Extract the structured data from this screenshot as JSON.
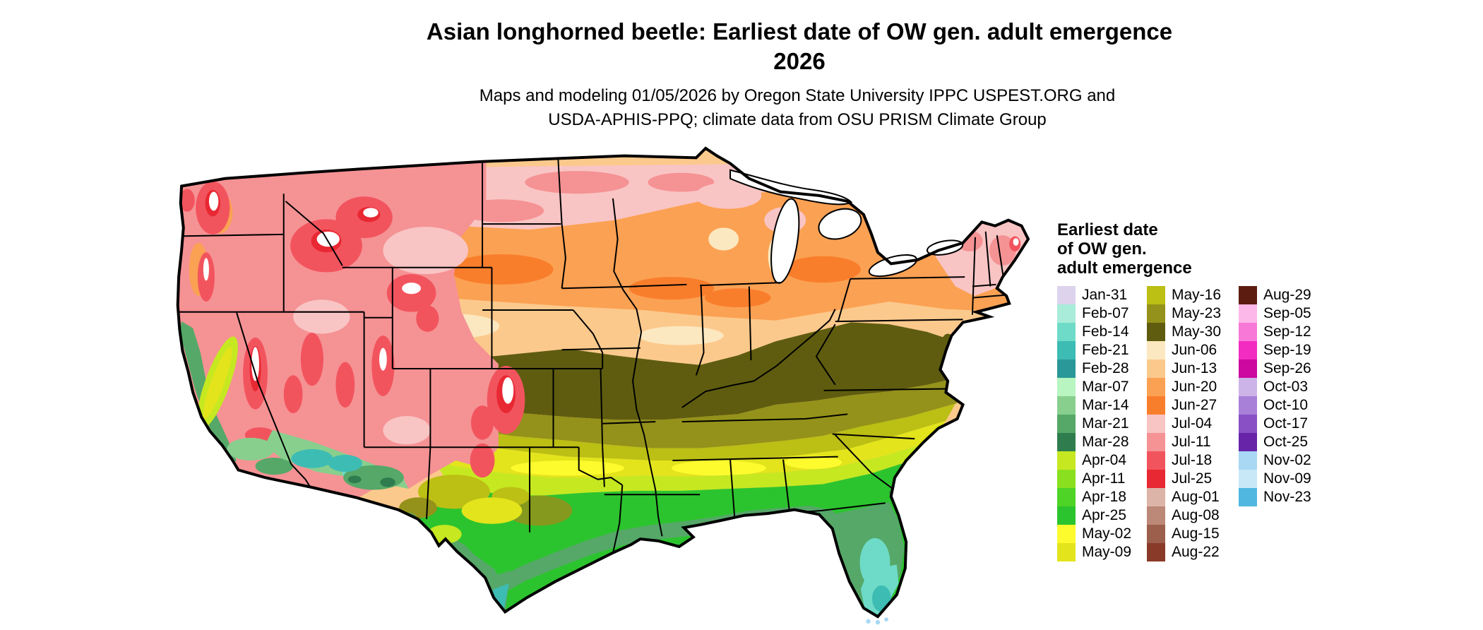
{
  "title": {
    "line1": "Asian longhorned beetle: Earliest date of OW gen. adult emergence",
    "line2": "2026"
  },
  "subtitle": {
    "line1": "Maps and modeling 01/05/2026 by Oregon State University IPPC USPEST.ORG and",
    "line2": "USDA-APHIS-PPQ; climate data from OSU PRISM Climate Group"
  },
  "legend": {
    "title_lines": [
      "Earliest date",
      "of OW gen.",
      "adult emergence"
    ],
    "columns": [
      {
        "entries": [
          {
            "label": "Jan-31",
            "color": "#ddd3ec"
          },
          {
            "label": "Feb-07",
            "color": "#a8ecd9"
          },
          {
            "label": "Feb-14",
            "color": "#6edbc8"
          },
          {
            "label": "Feb-21",
            "color": "#3dbcb4"
          },
          {
            "label": "Feb-28",
            "color": "#2a9898"
          },
          {
            "label": "Mar-07",
            "color": "#b8f5c0"
          },
          {
            "label": "Mar-14",
            "color": "#88cf8e"
          },
          {
            "label": "Mar-21",
            "color": "#55a868"
          },
          {
            "label": "Mar-28",
            "color": "#2f7d4e"
          },
          {
            "label": "Apr-04",
            "color": "#c6e821"
          },
          {
            "label": "Apr-11",
            "color": "#8ae01e"
          },
          {
            "label": "Apr-18",
            "color": "#4ed427"
          },
          {
            "label": "Apr-25",
            "color": "#2cc42e"
          },
          {
            "label": "May-02",
            "color": "#fdfb2e"
          },
          {
            "label": "May-09",
            "color": "#e3e41c"
          }
        ]
      },
      {
        "entries": [
          {
            "label": "May-16",
            "color": "#bcbf14"
          },
          {
            "label": "May-23",
            "color": "#94921a"
          },
          {
            "label": "May-30",
            "color": "#5f5c10"
          },
          {
            "label": "Jun-06",
            "color": "#fce8c0"
          },
          {
            "label": "Jun-13",
            "color": "#fcc98c"
          },
          {
            "label": "Jun-20",
            "color": "#fba153"
          },
          {
            "label": "Jun-27",
            "color": "#f97e2c"
          },
          {
            "label": "Jul-04",
            "color": "#f9c4c4"
          },
          {
            "label": "Jul-11",
            "color": "#f59294"
          },
          {
            "label": "Jul-18",
            "color": "#f2545e"
          },
          {
            "label": "Jul-25",
            "color": "#e82832"
          },
          {
            "label": "Aug-01",
            "color": "#dcb4a8"
          },
          {
            "label": "Aug-08",
            "color": "#bc8878"
          },
          {
            "label": "Aug-15",
            "color": "#9c5f4c"
          },
          {
            "label": "Aug-22",
            "color": "#8a3a28"
          }
        ]
      },
      {
        "entries": [
          {
            "label": "Aug-29",
            "color": "#5c1c10"
          },
          {
            "label": "Sep-05",
            "color": "#fcb8e8"
          },
          {
            "label": "Sep-12",
            "color": "#f878d8"
          },
          {
            "label": "Sep-19",
            "color": "#f22cc0"
          },
          {
            "label": "Sep-26",
            "color": "#cc08a0"
          },
          {
            "label": "Oct-03",
            "color": "#ccb4e8"
          },
          {
            "label": "Oct-10",
            "color": "#a880d8"
          },
          {
            "label": "Oct-17",
            "color": "#8850c4"
          },
          {
            "label": "Oct-25",
            "color": "#6824a8"
          },
          {
            "label": "Nov-02",
            "color": "#a8d8f4"
          },
          {
            "label": "Nov-09",
            "color": "#c8e8f8"
          },
          {
            "label": "Nov-23",
            "color": "#50b8e0"
          }
        ]
      }
    ]
  },
  "map": {
    "border_color": "#000000",
    "background_color": "#ffffff"
  }
}
